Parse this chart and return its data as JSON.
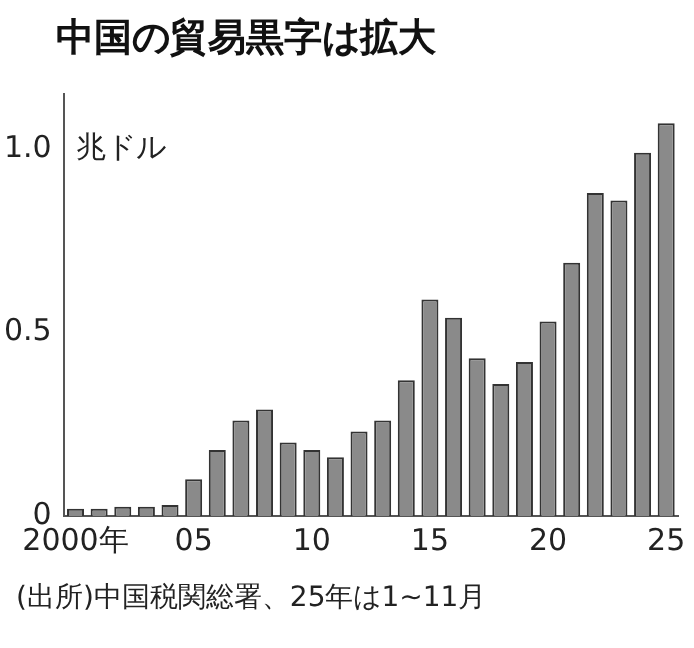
{
  "chart_data": {
    "type": "bar",
    "title": "中国の貿易黒字は拡大",
    "ylabel": "兆ドル",
    "categories": [
      "2000年",
      null,
      null,
      null,
      null,
      "05",
      null,
      null,
      null,
      null,
      "10",
      null,
      null,
      null,
      null,
      "15",
      null,
      null,
      null,
      null,
      "20",
      null,
      null,
      null,
      null,
      "25"
    ],
    "values": [
      0.02,
      0.02,
      0.025,
      0.025,
      0.03,
      0.1,
      0.18,
      0.26,
      0.29,
      0.2,
      0.18,
      0.16,
      0.23,
      0.26,
      0.37,
      0.59,
      0.54,
      0.43,
      0.36,
      0.42,
      0.53,
      0.69,
      0.88,
      0.86,
      0.99,
      1.07
    ],
    "color": "#8a8a8a",
    "ylim": [
      0,
      1.15
    ],
    "yticks": [
      0,
      0.5,
      {
        "value": 1,
        "label": "1.0"
      }
    ],
    "grid": false,
    "legend": false,
    "annotations": [
      "(出所)中国税関総署、25年は1~11月"
    ]
  }
}
